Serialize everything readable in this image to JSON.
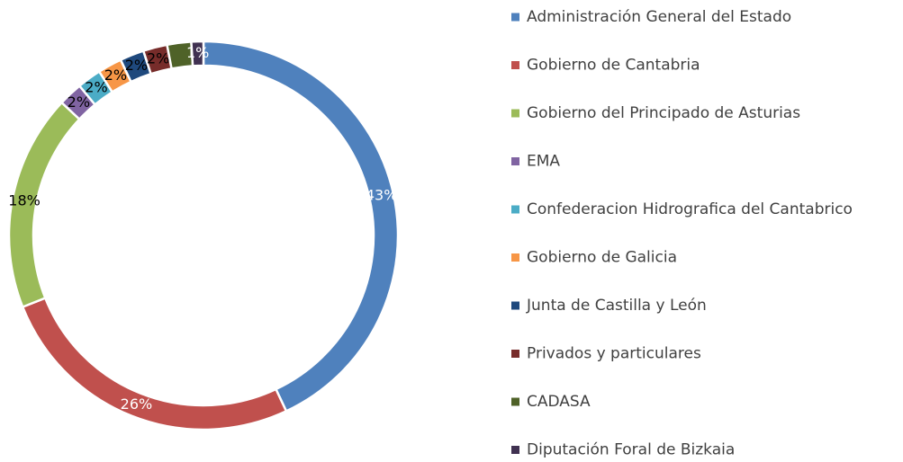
{
  "chart_data": {
    "type": "donut",
    "categories": [
      "Administración General del Estado",
      "Gobierno de Cantabria",
      "Gobierno del Principado de Asturias",
      "EMA",
      "Confederacion Hidrografica del Cantabrico",
      "Gobierno de Galicia",
      "Junta de Castilla y León",
      "Privados y particulares",
      "CADASA",
      "Diputación Foral de Bizkaia"
    ],
    "values": [
      43,
      26,
      18,
      2,
      2,
      2,
      2,
      2,
      2,
      1
    ],
    "value_labels": [
      "43%",
      "26%",
      "18%",
      "2%",
      "2%",
      "2%",
      "2%",
      "2%",
      null,
      "1%"
    ],
    "colors": [
      "#4f81bd",
      "#c0504d",
      "#9bbb59",
      "#8064a2",
      "#4bacc6",
      "#f79646",
      "#1f497d",
      "#772c2a",
      "#4f6228",
      "#403151"
    ],
    "legend": "right"
  }
}
